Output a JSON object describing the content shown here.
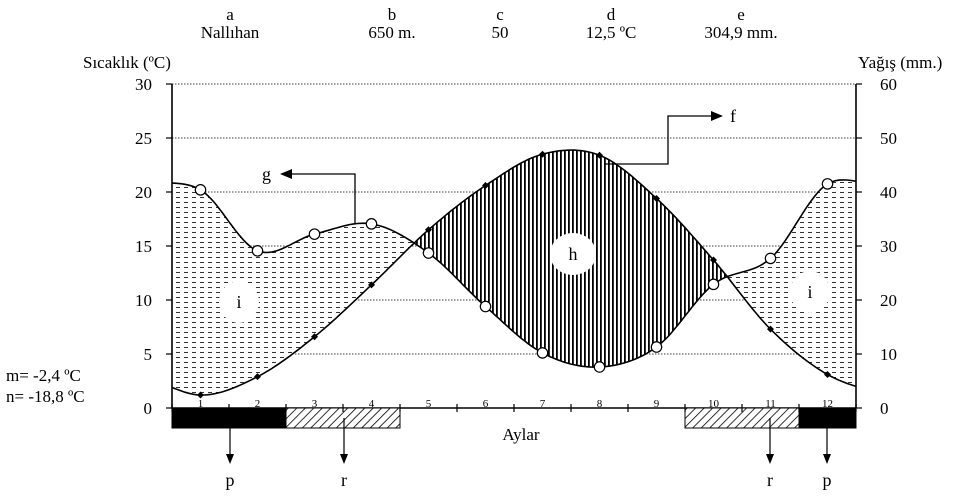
{
  "header": [
    {
      "key": "a",
      "value": "Nallıhan"
    },
    {
      "key": "b",
      "value": "650 m."
    },
    {
      "key": "c",
      "value": "50"
    },
    {
      "key": "d",
      "value": "12,5 ºC"
    },
    {
      "key": "e",
      "value": "304,9 mm."
    }
  ],
  "side_notes": {
    "m": "m= -2,4 ºC",
    "n": "n= -18,8 ºC"
  },
  "labels": {
    "f": "f",
    "g": "g",
    "h": "h",
    "i_left": "i",
    "i_right": "i",
    "p_left": "p",
    "r_left": "r",
    "r_right": "r",
    "p_right": "p"
  },
  "chart_data": {
    "type": "line",
    "title": "",
    "xlabel": "Aylar",
    "ylabel_left": "Sıcaklık (ºC)",
    "ylabel_right": "Yağış (mm.)",
    "categories": [
      "1",
      "2",
      "3",
      "4",
      "5",
      "6",
      "7",
      "8",
      "9",
      "10",
      "11",
      "12"
    ],
    "y_left_lim": [
      0,
      30
    ],
    "y_left_ticks": [
      0,
      5,
      10,
      15,
      20,
      25,
      30
    ],
    "y_right_lim": [
      0,
      60
    ],
    "y_right_ticks": [
      0,
      10,
      20,
      30,
      40,
      50,
      60
    ],
    "grid": true,
    "series": [
      {
        "marker": "filled-diamond",
        "axis": "left",
        "values": [
          1.2,
          2.9,
          6.6,
          11.4,
          16.5,
          20.6,
          23.5,
          23.4,
          19.4,
          13.7,
          7.3,
          3.1
        ]
      },
      {
        "marker": "open-circle",
        "axis": "right",
        "values": [
          40.4,
          29.1,
          32.2,
          34.1,
          28.7,
          18.8,
          10.2,
          7.6,
          11.3,
          22.9,
          27.7,
          41.5
        ]
      }
    ],
    "bar_periods": [
      {
        "from_month": 1,
        "to_month": 2,
        "fill": "solid-black"
      },
      {
        "from_month": 3,
        "to_month": 4,
        "fill": "hatched"
      },
      {
        "from_month": 10,
        "to_month": 11,
        "fill": "hatched"
      },
      {
        "from_month": 12,
        "to_month": 12,
        "fill": "solid-black"
      }
    ],
    "colors": {
      "line": "#000000",
      "fill_surplus": "#000000",
      "fill_deficit": "#000000"
    }
  }
}
